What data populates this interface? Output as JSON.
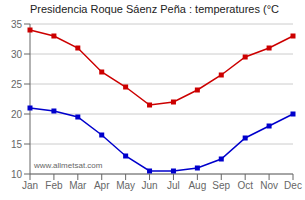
{
  "chart_data": {
    "type": "line",
    "title": "Presidencia Roque Sáenz Peña : temperatures (°C",
    "categories": [
      "Jan",
      "Feb",
      "Mar",
      "Apr",
      "May",
      "Jun",
      "Jul",
      "Aug",
      "Sep",
      "Oct",
      "Nov",
      "Dec"
    ],
    "series": [
      {
        "color": "#cc0000",
        "values": [
          34,
          33,
          31,
          27,
          24.5,
          21.5,
          22,
          24,
          26.5,
          29.5,
          31,
          33
        ]
      },
      {
        "color": "#0000cc",
        "values": [
          21,
          20.5,
          19.5,
          16.5,
          13,
          10.5,
          10.5,
          11,
          12.5,
          16,
          18,
          20
        ]
      }
    ],
    "ylim": [
      10,
      35
    ],
    "yticks": [
      10,
      15,
      20,
      25,
      30,
      35
    ],
    "grid": true,
    "marker": "square",
    "annotations": [
      "www.allmetsat.com"
    ]
  }
}
